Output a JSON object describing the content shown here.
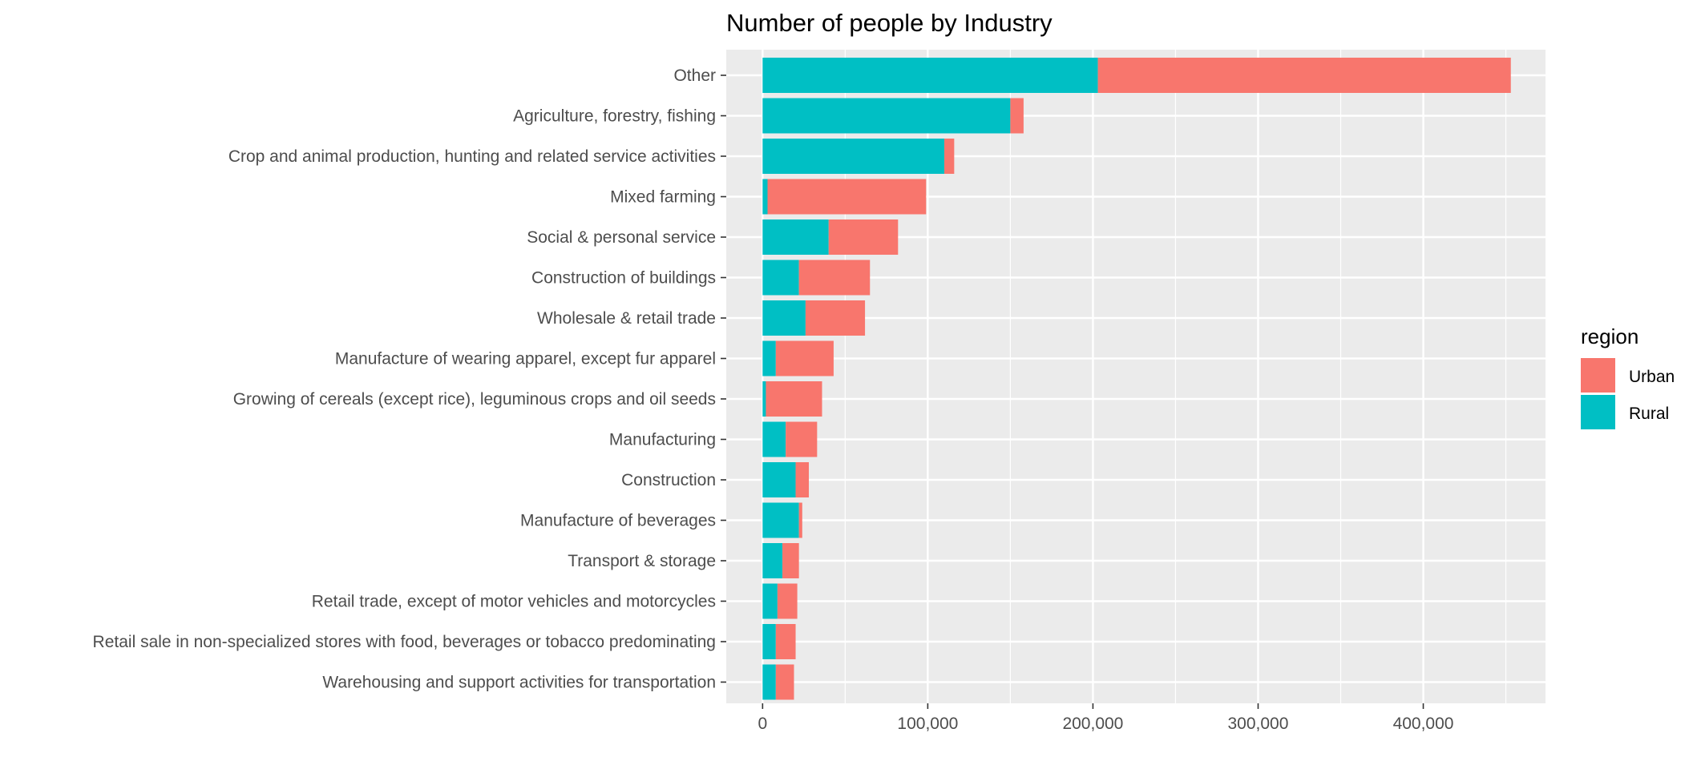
{
  "chart_data": {
    "type": "bar",
    "orientation": "horizontal",
    "stacked": true,
    "title": "Number of people by Industry",
    "xlabel": "",
    "ylabel": "",
    "xlim": [
      -22000,
      474000
    ],
    "x_ticks": [
      0,
      100000,
      200000,
      300000,
      400000
    ],
    "x_tick_labels": [
      "0",
      "100,000",
      "200,000",
      "300,000",
      "400,000"
    ],
    "grid": true,
    "legend": {
      "title": "region",
      "position": "right",
      "entries": [
        "Urban",
        "Rural"
      ]
    },
    "colors": {
      "Urban": "#F8766D",
      "Rural": "#00BFC4",
      "panel_background": "#EBEBEB",
      "grid_line": "#FFFFFF"
    },
    "categories": [
      "Other",
      "Agriculture, forestry, fishing",
      "Crop and animal production, hunting and related service activities",
      "Mixed farming",
      "Social & personal service",
      "Construction of buildings",
      "Wholesale & retail trade",
      "Manufacture of wearing apparel, except fur apparel",
      "Growing of cereals (except rice), leguminous crops and oil seeds",
      "Manufacturing",
      "Construction",
      "Manufacture of beverages",
      "Transport & storage",
      "Retail trade, except of motor vehicles and motorcycles",
      "Retail sale in non-specialized stores with food, beverages or tobacco predominating",
      "Warehousing and support activities for transportation"
    ],
    "series": [
      {
        "name": "Rural",
        "values": [
          203000,
          150000,
          110000,
          3000,
          40000,
          22000,
          26000,
          8000,
          2000,
          14000,
          20000,
          22000,
          12000,
          9000,
          8000,
          8000
        ]
      },
      {
        "name": "Urban",
        "values": [
          250000,
          8000,
          6000,
          96000,
          42000,
          43000,
          36000,
          35000,
          34000,
          19000,
          8000,
          2000,
          10000,
          12000,
          12000,
          11000
        ]
      }
    ]
  }
}
